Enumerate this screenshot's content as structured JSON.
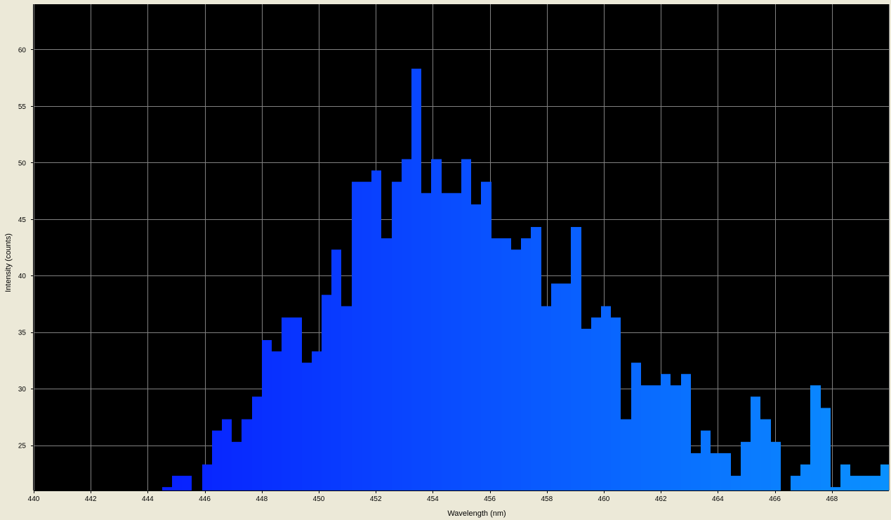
{
  "chart_data": {
    "type": "bar",
    "title": "",
    "xlabel": "Wavelength (nm)",
    "ylabel": "Intensity (counts)",
    "xlim": [
      440,
      470
    ],
    "ylim": [
      21,
      64
    ],
    "xticks": [
      440,
      442,
      444,
      446,
      448,
      450,
      452,
      454,
      456,
      458,
      460,
      462,
      464,
      466,
      468
    ],
    "yticks": [
      25,
      30,
      35,
      40,
      45,
      50,
      55,
      60
    ],
    "grid": true,
    "bin_width": 0.35,
    "x": [
      444.5,
      444.85,
      445.2,
      445.55,
      445.9,
      446.25,
      446.6,
      446.95,
      447.3,
      447.65,
      448.0,
      448.35,
      448.7,
      449.05,
      449.4,
      449.75,
      450.1,
      450.45,
      450.8,
      451.15,
      451.5,
      451.85,
      452.2,
      452.55,
      452.9,
      453.25,
      453.6,
      453.95,
      454.3,
      454.65,
      455.0,
      455.35,
      455.7,
      456.05,
      456.4,
      456.75,
      457.1,
      457.45,
      457.8,
      458.15,
      458.5,
      458.85,
      459.2,
      459.55,
      459.9,
      460.25,
      460.6,
      460.95,
      461.3,
      461.65,
      462.0,
      462.35,
      462.7,
      463.05,
      463.4,
      463.75,
      464.1,
      464.45,
      464.8,
      465.15,
      465.5,
      465.85,
      466.2,
      466.55,
      466.9,
      467.25,
      467.6,
      467.95,
      468.3,
      468.65,
      469.0,
      469.35,
      469.7
    ],
    "values": [
      21.3,
      22.3,
      22.3,
      21.0,
      23.3,
      26.3,
      27.3,
      25.3,
      27.3,
      29.3,
      34.3,
      33.3,
      36.3,
      36.3,
      32.3,
      33.3,
      38.3,
      42.3,
      37.3,
      48.3,
      48.3,
      49.3,
      43.3,
      48.3,
      50.3,
      58.3,
      47.3,
      50.3,
      47.3,
      47.3,
      50.3,
      46.3,
      48.3,
      43.3,
      43.3,
      42.3,
      43.3,
      44.3,
      37.3,
      39.3,
      39.3,
      44.3,
      35.3,
      36.3,
      37.3,
      36.3,
      27.3,
      32.3,
      30.3,
      30.3,
      31.3,
      30.3,
      31.3,
      24.3,
      26.3,
      24.3,
      24.3,
      22.3,
      25.3,
      29.3,
      27.3,
      25.3,
      21.0,
      22.3,
      23.3,
      30.3,
      28.3,
      21.3,
      23.3,
      22.3,
      22.3,
      22.3,
      23.3
    ],
    "colors": {
      "plot_background": "#000000",
      "frame_background": "#ece9d8",
      "grid": "#808080",
      "bar_start": "#0820ff",
      "bar_end": "#0a90ff",
      "axis_text": "#000000"
    }
  }
}
